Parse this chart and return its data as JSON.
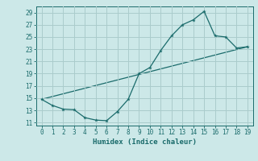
{
  "xlabel": "Humidex (Indice chaleur)",
  "bg_color": "#cce8e8",
  "grid_color": "#aacccc",
  "line_color": "#1a6b6b",
  "curve1_x": [
    0,
    1,
    2,
    3,
    4,
    5,
    6,
    7,
    8,
    9,
    10,
    11,
    12,
    13,
    14,
    15,
    16,
    17,
    18,
    19
  ],
  "curve1_y": [
    14.8,
    13.8,
    13.2,
    13.1,
    11.8,
    11.4,
    11.3,
    12.8,
    14.8,
    19.0,
    20.0,
    22.8,
    25.2,
    27.0,
    27.8,
    29.2,
    25.2,
    25.0,
    23.2,
    23.4
  ],
  "curve2_x": [
    0,
    19
  ],
  "curve2_y": [
    14.8,
    23.4
  ],
  "xlim": [
    -0.5,
    19.5
  ],
  "ylim": [
    10.5,
    30
  ],
  "yticks": [
    11,
    13,
    15,
    17,
    19,
    21,
    23,
    25,
    27,
    29
  ],
  "xticks": [
    0,
    1,
    2,
    3,
    4,
    5,
    6,
    7,
    8,
    9,
    10,
    11,
    12,
    13,
    14,
    15,
    16,
    17,
    18,
    19
  ],
  "tick_fontsize": 5.5,
  "xlabel_fontsize": 6.5
}
